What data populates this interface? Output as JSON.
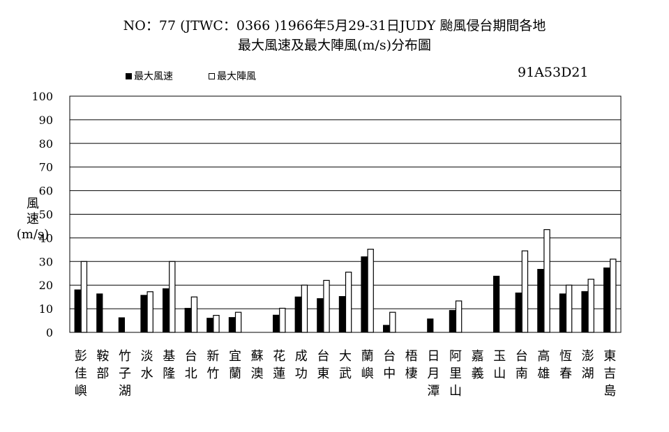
{
  "title_line1": "NO：77 (JTWC：0366 )1966年5月29-31日JUDY 颱風侵台期間各地",
  "title_line2": "最大風速及最大陣風(m/s)分布圖",
  "code": "91A53D21",
  "colors": {
    "max_wind": "#000000",
    "max_gust": "#ffffff",
    "grid": "#000000"
  },
  "chart_data": {
    "type": "bar",
    "title": "NO：77 (JTWC：0366 )1966年5月29-31日JUDY 颱風侵台期間各地 最大風速及最大陣風(m/s)分布圖",
    "ylabel_lines": [
      "風",
      "速",
      "(m/s)"
    ],
    "ylim": [
      0,
      100
    ],
    "yticks": [
      0,
      10,
      20,
      30,
      40,
      50,
      60,
      70,
      80,
      90,
      100
    ],
    "grid": true,
    "legend_position": "top-left",
    "categories": [
      "彭佳嶼",
      "鞍部",
      "竹子湖",
      "淡水",
      "基隆",
      "台北",
      "新竹",
      "宜蘭",
      "蘇澳",
      "花蓮",
      "成功",
      "台東",
      "大武",
      "蘭嶼",
      "台中",
      "梧棲",
      "日月潭",
      "阿里山",
      "嘉義",
      "玉山",
      "台南",
      "高雄",
      "恆春",
      "澎湖",
      "東吉島"
    ],
    "series": [
      {
        "name": "最大風速",
        "values": [
          18,
          16.3,
          6.2,
          15.7,
          18.5,
          10.2,
          6,
          6.3,
          null,
          7.3,
          15,
          14.3,
          15.2,
          32,
          3,
          null,
          5.7,
          9.3,
          null,
          23.8,
          16.7,
          26.7,
          16.3,
          17.3,
          27.3
        ]
      },
      {
        "name": "最大陣風",
        "values": [
          30,
          null,
          null,
          17.2,
          30,
          15,
          7.2,
          8.5,
          null,
          10.2,
          20,
          22,
          25.5,
          35.2,
          8.5,
          null,
          null,
          13.3,
          null,
          null,
          34.5,
          43.5,
          20,
          22.5,
          31
        ]
      }
    ]
  }
}
